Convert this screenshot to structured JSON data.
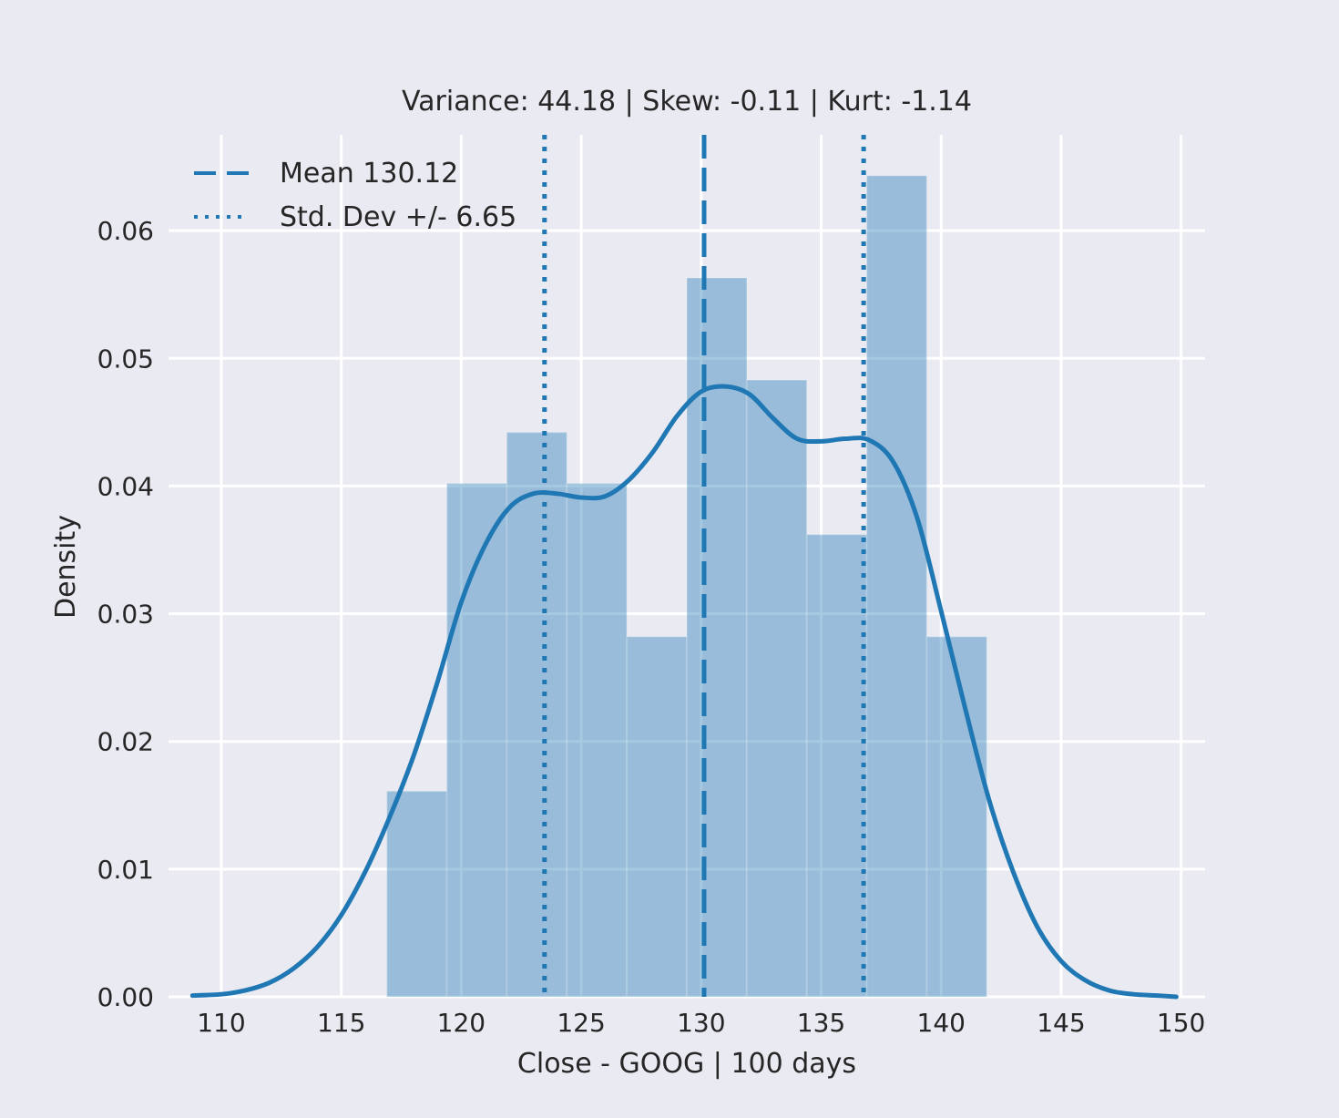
{
  "chart_data": {
    "type": "bar",
    "title": "Variance: 44.18 | Skew: -0.11 | Kurt: -1.14",
    "xlabel": "Close - GOOG | 100 days",
    "ylabel": "Density",
    "xlim": [
      107.8,
      151.0
    ],
    "ylim": [
      0.0,
      0.0675
    ],
    "x_ticks": [
      110,
      115,
      120,
      125,
      130,
      135,
      140,
      145,
      150
    ],
    "y_ticks": [
      0.0,
      0.01,
      0.02,
      0.03,
      0.04,
      0.05,
      0.06
    ],
    "x_tick_labels": [
      "110",
      "115",
      "120",
      "125",
      "130",
      "135",
      "140",
      "145",
      "150"
    ],
    "y_tick_labels": [
      "0.00",
      "0.01",
      "0.02",
      "0.03",
      "0.04",
      "0.05",
      "0.06"
    ],
    "grid": true,
    "legend_placement": "top-left",
    "histogram": {
      "bin_edges": [
        116.9,
        119.4,
        121.9,
        124.4,
        126.9,
        129.4,
        131.9,
        134.4,
        136.9,
        139.4,
        141.9
      ],
      "values": [
        0.0161,
        0.0402,
        0.0442,
        0.0402,
        0.0282,
        0.0563,
        0.0483,
        0.0362,
        0.0643,
        0.0282
      ],
      "color": "#1f77b4",
      "opacity": 0.4
    },
    "kde": {
      "color": "#1f77b4",
      "x": [
        108.8,
        110,
        111,
        112,
        113,
        114,
        115,
        116,
        117,
        118,
        119,
        120,
        121,
        122,
        123,
        124,
        125,
        126,
        127,
        128,
        129,
        130,
        131,
        132,
        133,
        134,
        135,
        136,
        137,
        138,
        139,
        140,
        141,
        142,
        143,
        144,
        145,
        146,
        147,
        148,
        149,
        149.8
      ],
      "y": [
        0.0001,
        0.0002,
        0.0005,
        0.0011,
        0.0022,
        0.0039,
        0.0064,
        0.0098,
        0.014,
        0.0188,
        0.0246,
        0.0309,
        0.0354,
        0.0383,
        0.0394,
        0.0394,
        0.0391,
        0.0392,
        0.0405,
        0.0427,
        0.0455,
        0.0474,
        0.0478,
        0.0472,
        0.0453,
        0.0437,
        0.0435,
        0.0437,
        0.0436,
        0.0419,
        0.0375,
        0.0302,
        0.0226,
        0.0154,
        0.0098,
        0.0055,
        0.0028,
        0.0013,
        0.0005,
        0.0002,
        0.0001,
        0.0
      ]
    },
    "mean_line": {
      "value": 130.12,
      "style": "dashed",
      "color": "#1f77b4"
    },
    "std_lines": {
      "values": [
        123.47,
        136.77
      ],
      "style": "dotted",
      "color": "#1f77b4"
    },
    "legend": [
      {
        "label": "Mean 130.12",
        "style": "dashed"
      },
      {
        "label": "Std. Dev +/- 6.65",
        "style": "dotted"
      }
    ],
    "colors": {
      "background": "#EAEAF2",
      "grid": "#FFFFFF",
      "text": "#262626"
    }
  }
}
